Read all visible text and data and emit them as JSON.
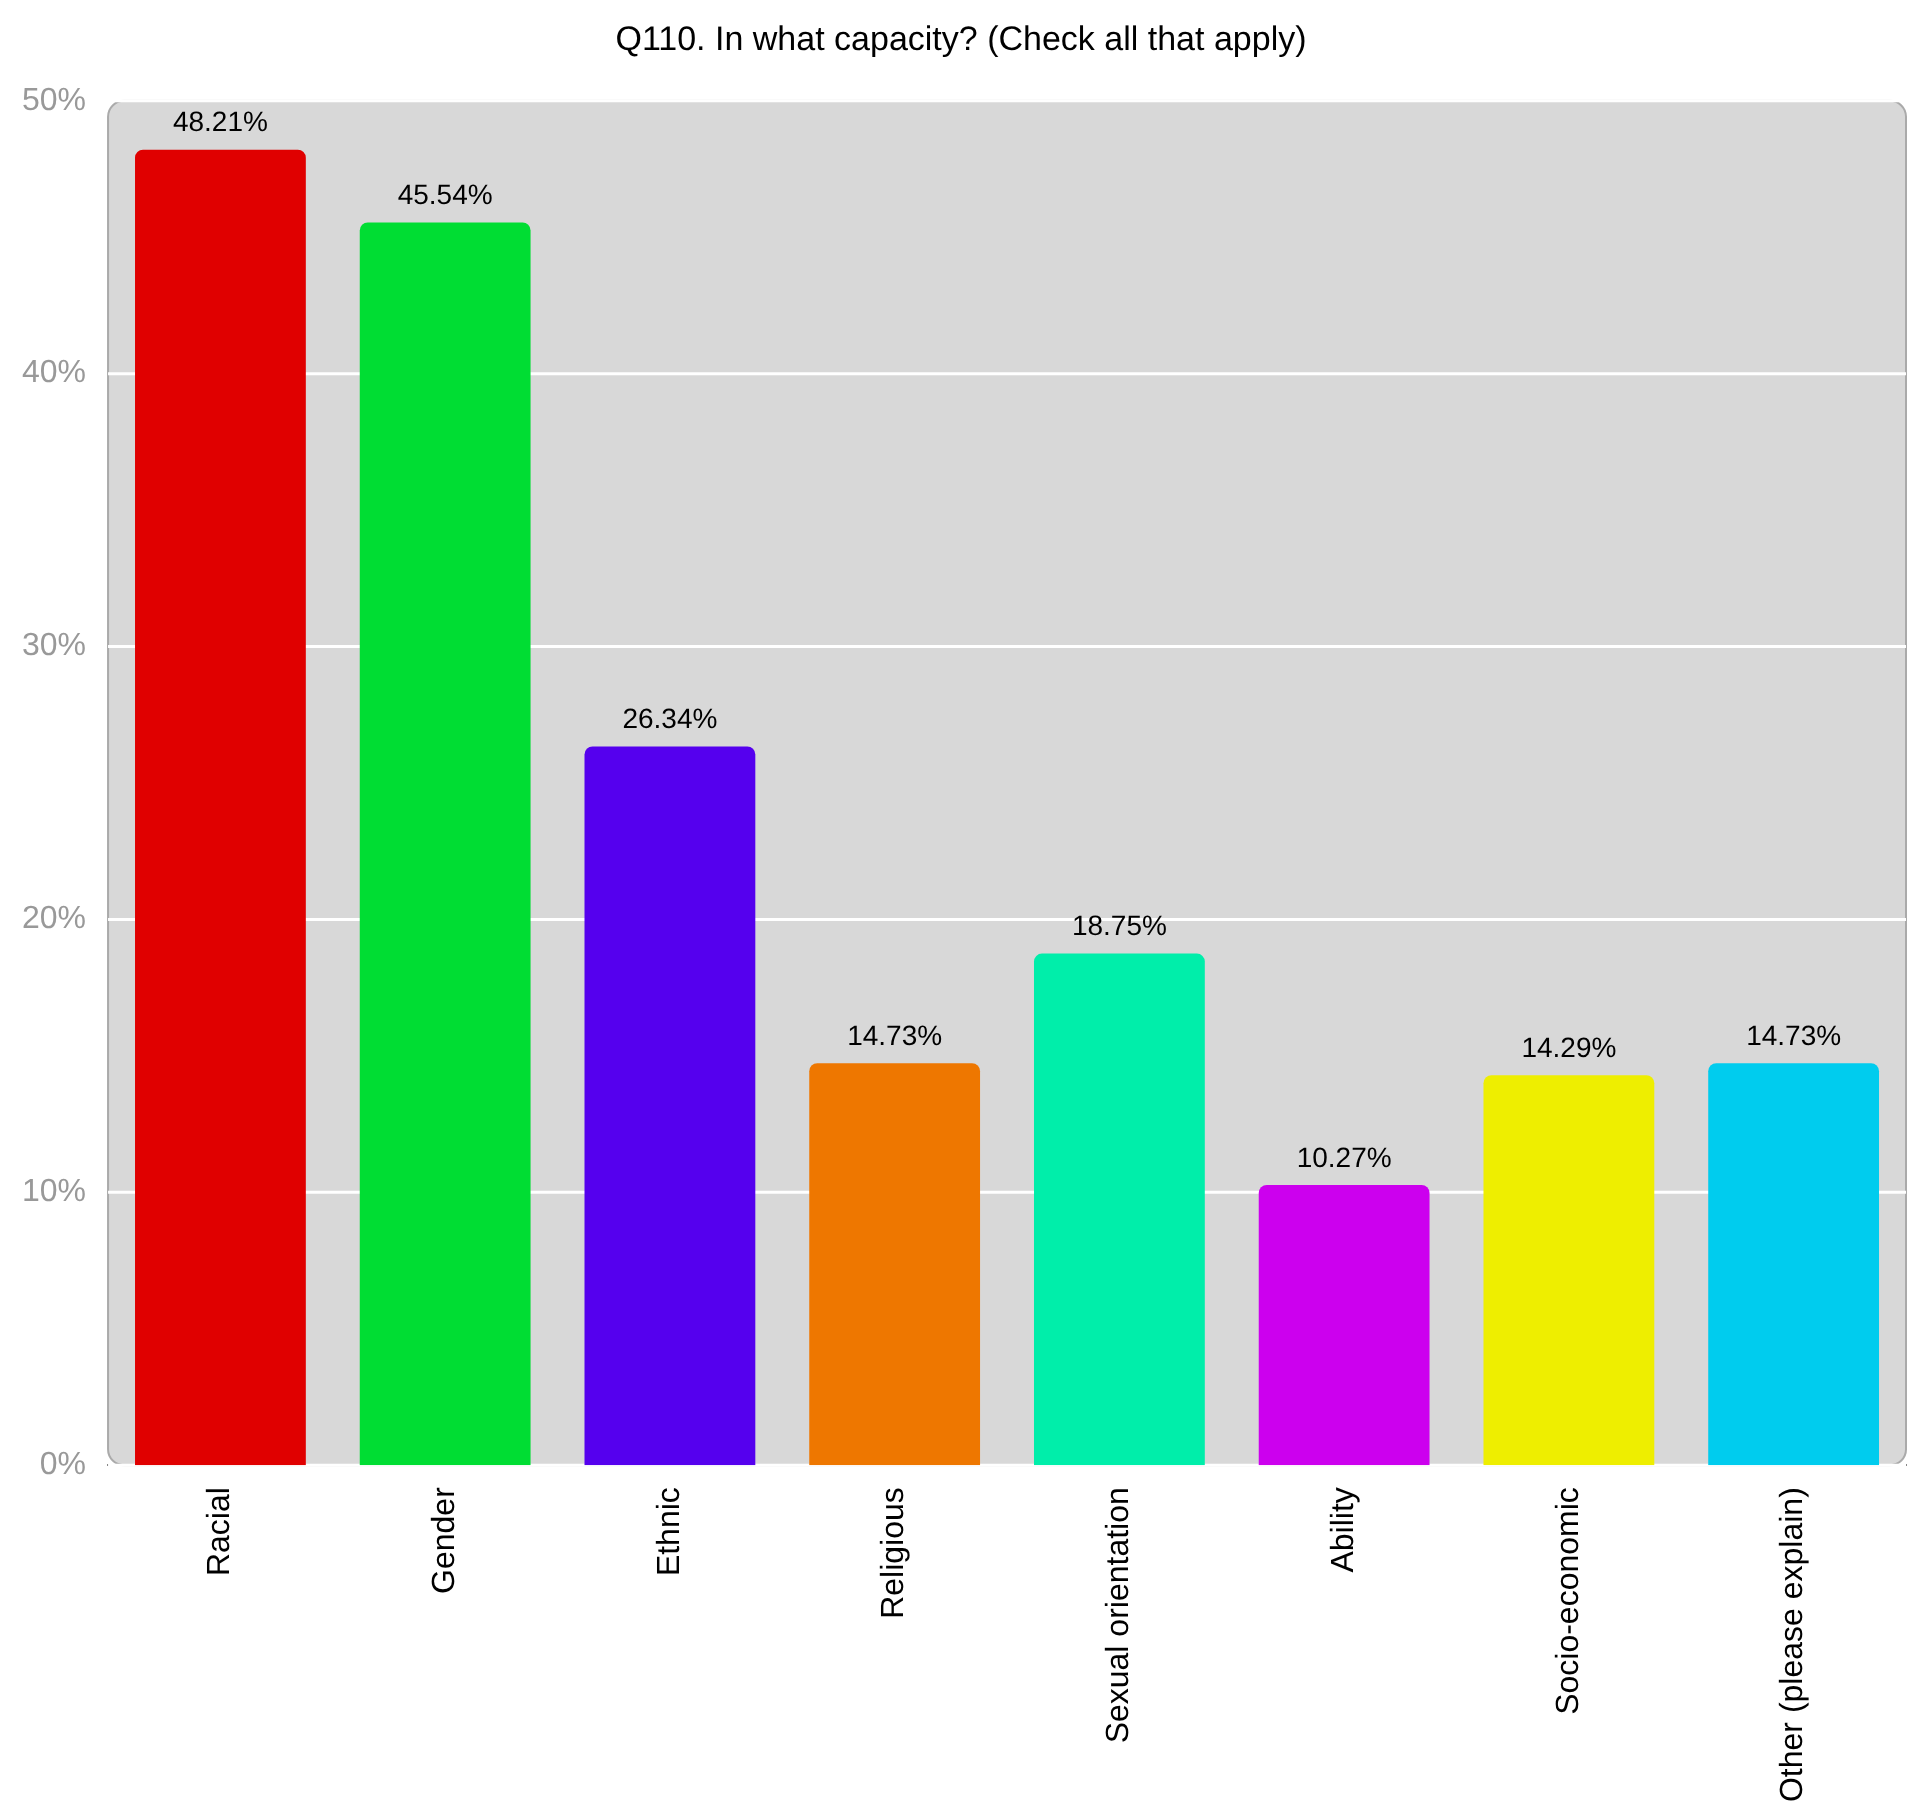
{
  "chart_data": {
    "type": "bar",
    "title": "Q110. In what capacity? (Check all that apply)",
    "categories": [
      "Racial",
      "Gender",
      "Ethnic",
      "Religious",
      "Sexual orientation",
      "Ability",
      "Socio-economic",
      "Other (please explain)"
    ],
    "values": [
      48.21,
      45.54,
      26.34,
      14.73,
      18.75,
      10.27,
      14.29,
      14.73
    ],
    "colors": [
      "#e00000",
      "#00dd33",
      "#5500ee",
      "#ee7700",
      "#00eeaa",
      "#cc00ee",
      "#eeee00",
      "#00ccee"
    ],
    "value_labels": [
      "48.21%",
      "45.54%",
      "26.34%",
      "14.73%",
      "18.75%",
      "10.27%",
      "14.29%",
      "14.73%"
    ],
    "ylim": [
      0,
      50
    ],
    "yticks": [
      {
        "value": 0,
        "label": "0%"
      },
      {
        "value": 10,
        "label": "10%"
      },
      {
        "value": 20,
        "label": "20%"
      },
      {
        "value": 30,
        "label": "30%"
      },
      {
        "value": 40,
        "label": "40%"
      },
      {
        "value": 50,
        "label": "50%"
      }
    ],
    "grid": "y"
  }
}
